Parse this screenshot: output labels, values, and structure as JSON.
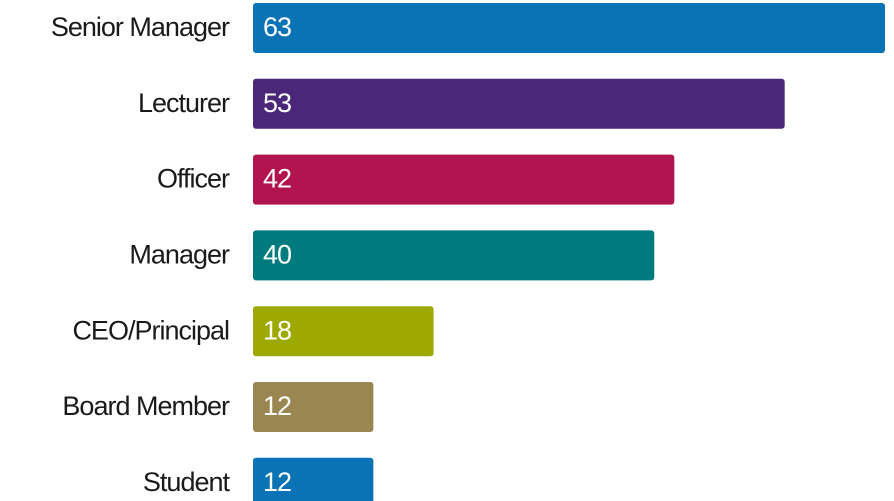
{
  "chart_data": {
    "type": "bar",
    "orientation": "horizontal",
    "categories": [
      "Senior Manager",
      "Lecturer",
      "Officer",
      "Manager",
      "CEO/Principal",
      "Board Member",
      "Student"
    ],
    "values": [
      63,
      53,
      42,
      40,
      18,
      12,
      12
    ],
    "colors": [
      "#0a73b6",
      "#4a2779",
      "#b2144f",
      "#007b7d",
      "#9ea900",
      "#9a8650",
      "#0a73b6"
    ]
  }
}
